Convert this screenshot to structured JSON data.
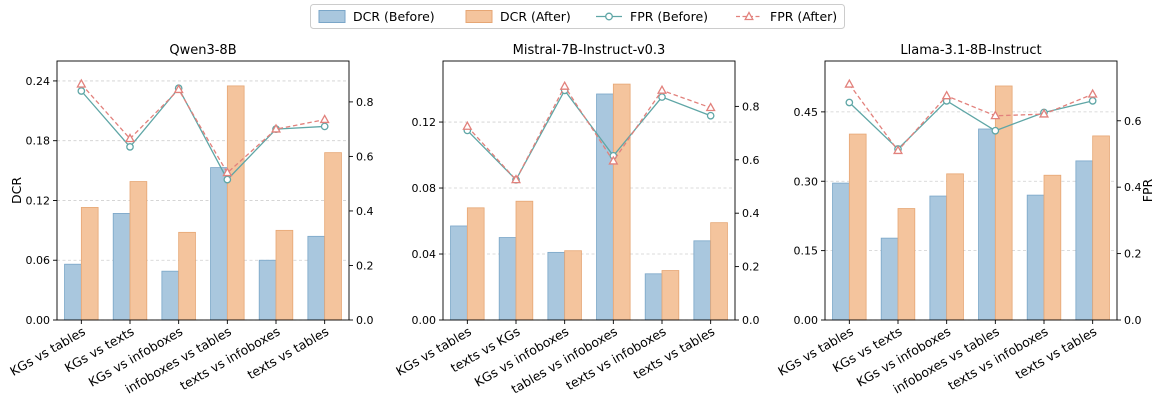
{
  "legend": {
    "items": [
      {
        "label": "DCR (Before)",
        "kind": "bar",
        "fill": "#a9c7de",
        "stroke": "#7aa6c8"
      },
      {
        "label": "DCR (After)",
        "kind": "bar",
        "fill": "#f4c49d",
        "stroke": "#e6a674"
      },
      {
        "label": "FPR (Before)",
        "kind": "line",
        "color": "#5fa6a6",
        "marker": "circle"
      },
      {
        "label": "FPR (After)",
        "kind": "line",
        "color": "#e2817c",
        "marker": "triangle"
      }
    ]
  },
  "colors": {
    "dcr_before_fill": "#a9c7de",
    "dcr_before_stroke": "#7aa6c8",
    "dcr_after_fill": "#f4c49d",
    "dcr_after_stroke": "#e6a674",
    "fpr_before": "#5fa6a6",
    "fpr_after": "#e2817c"
  },
  "chart_data": [
    {
      "type": "bar",
      "title": "Qwen3-8B",
      "ylabel": "DCR",
      "y2label": "",
      "categories": [
        "KGs vs tables",
        "KGs vs texts",
        "KGs vs infoboxes",
        "infoboxes vs tables",
        "texts vs infoboxes",
        "texts vs tables"
      ],
      "ylim": [
        0,
        0.26
      ],
      "yticks": [
        0.0,
        0.06,
        0.12,
        0.18,
        0.24
      ],
      "ytick_labels": [
        "0.00",
        "0.06",
        "0.12",
        "0.18",
        "0.24"
      ],
      "y2lim": [
        0,
        0.95
      ],
      "y2ticks": [
        0.0,
        0.2,
        0.4,
        0.6,
        0.8
      ],
      "y2tick_labels": [
        "0.0",
        "0.2",
        "0.4",
        "0.6",
        "0.8"
      ],
      "series": [
        {
          "name": "DCR (Before)",
          "kind": "bar",
          "values": [
            0.056,
            0.107,
            0.049,
            0.153,
            0.06,
            0.084
          ]
        },
        {
          "name": "DCR (After)",
          "kind": "bar",
          "values": [
            0.113,
            0.139,
            0.088,
            0.235,
            0.09,
            0.168
          ]
        },
        {
          "name": "FPR (Before)",
          "kind": "line",
          "axis": "right",
          "values": [
            0.84,
            0.635,
            0.85,
            0.515,
            0.7,
            0.71
          ]
        },
        {
          "name": "FPR (After)",
          "kind": "line",
          "axis": "right",
          "values": [
            0.865,
            0.665,
            0.845,
            0.54,
            0.7,
            0.735
          ]
        }
      ]
    },
    {
      "type": "bar",
      "title": "Mistral-7B-Instruct-v0.3",
      "ylabel": "",
      "y2label": "",
      "categories": [
        "KGs vs tables",
        "texts vs KGs",
        "KGs vs infoboxes",
        "tables vs infoboxes",
        "texts vs infoboxes",
        "texts vs tables"
      ],
      "ylim": [
        0,
        0.157
      ],
      "yticks": [
        0.0,
        0.04,
        0.08,
        0.12
      ],
      "ytick_labels": [
        "0.00",
        "0.04",
        "0.08",
        "0.12"
      ],
      "y2lim": [
        0,
        0.97
      ],
      "y2ticks": [
        0.0,
        0.2,
        0.4,
        0.6,
        0.8
      ],
      "y2tick_labels": [
        "0.0",
        "0.2",
        "0.4",
        "0.6",
        "0.8"
      ],
      "series": [
        {
          "name": "DCR (Before)",
          "kind": "bar",
          "values": [
            0.057,
            0.05,
            0.041,
            0.137,
            0.028,
            0.048
          ]
        },
        {
          "name": "DCR (After)",
          "kind": "bar",
          "values": [
            0.068,
            0.072,
            0.042,
            0.143,
            0.03,
            0.059
          ]
        },
        {
          "name": "FPR (Before)",
          "kind": "line",
          "axis": "right",
          "values": [
            0.71,
            0.525,
            0.86,
            0.615,
            0.835,
            0.765
          ]
        },
        {
          "name": "FPR (After)",
          "kind": "line",
          "axis": "right",
          "values": [
            0.725,
            0.525,
            0.875,
            0.595,
            0.86,
            0.795
          ]
        }
      ]
    },
    {
      "type": "bar",
      "title": "Llama-3.1-8B-Instruct",
      "ylabel": "",
      "y2label": "FPR",
      "categories": [
        "KGs vs tables",
        "KGs vs texts",
        "KGs vs infoboxes",
        "infoboxes vs tables",
        "texts vs infoboxes",
        "texts vs tables"
      ],
      "ylim": [
        0,
        0.56
      ],
      "yticks": [
        0.0,
        0.15,
        0.3,
        0.45
      ],
      "ytick_labels": [
        "0.00",
        "0.15",
        "0.30",
        "0.45"
      ],
      "y2lim": [
        0,
        0.78
      ],
      "y2ticks": [
        0.0,
        0.2,
        0.4,
        0.6
      ],
      "y2tick_labels": [
        "0.0",
        "0.2",
        "0.4",
        "0.6"
      ],
      "series": [
        {
          "name": "DCR (Before)",
          "kind": "bar",
          "values": [
            0.296,
            0.177,
            0.268,
            0.413,
            0.27,
            0.344
          ]
        },
        {
          "name": "DCR (After)",
          "kind": "bar",
          "values": [
            0.402,
            0.241,
            0.316,
            0.506,
            0.313,
            0.398
          ]
        },
        {
          "name": "FPR (Before)",
          "kind": "line",
          "axis": "right",
          "values": [
            0.655,
            0.515,
            0.66,
            0.57,
            0.625,
            0.66
          ]
        },
        {
          "name": "FPR (After)",
          "kind": "line",
          "axis": "right",
          "values": [
            0.71,
            0.51,
            0.675,
            0.615,
            0.62,
            0.68
          ]
        }
      ]
    }
  ]
}
